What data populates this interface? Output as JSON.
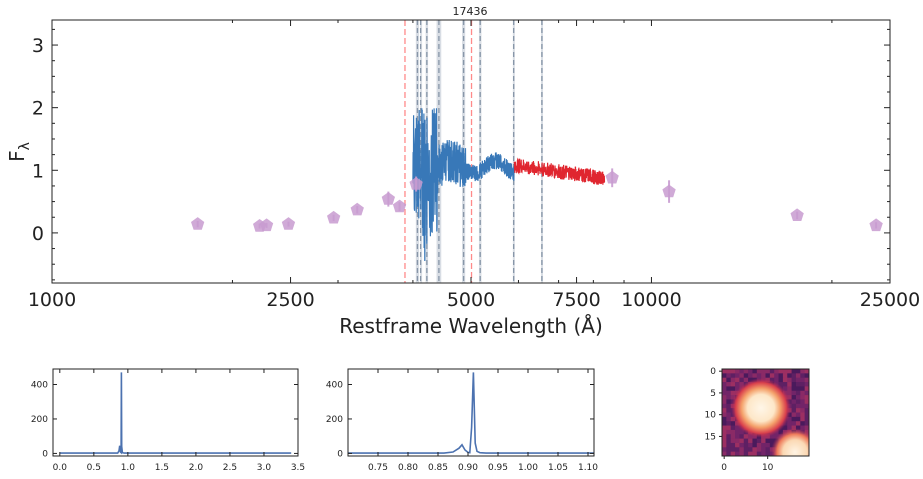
{
  "chart_data": [
    {
      "type": "line",
      "title": "17436",
      "xlabel": "Restframe Wavelength (Å)",
      "ylabel": "F",
      "ylabel_sub": "λ",
      "x_scale": "log",
      "xlim": [
        1000,
        25000
      ],
      "ylim": [
        -0.8,
        3.4
      ],
      "x_ticks": [
        1000,
        2500,
        5000,
        7500,
        10000,
        25000
      ],
      "x_tick_labels": [
        "1000",
        "2500",
        "5000",
        "7500",
        "10000",
        "25000"
      ],
      "y_ticks": [
        0,
        1,
        2,
        3
      ],
      "y_tick_labels": [
        "0",
        "1",
        "2",
        "3"
      ],
      "red_dashed_lines": [
        3880,
        5010
      ],
      "gray_bands": [
        {
          "center": 4070,
          "half_width": 25
        },
        {
          "center": 4120,
          "half_width": 8
        },
        {
          "center": 4220,
          "half_width": 20
        },
        {
          "center": 4420,
          "half_width": 40
        },
        {
          "center": 4860,
          "half_width": 30
        },
        {
          "center": 5180,
          "half_width": 25
        },
        {
          "center": 5890,
          "half_width": 18
        },
        {
          "center": 6565,
          "half_width": 22
        }
      ],
      "photometry_points": [
        {
          "x": 1750,
          "y": 0.14,
          "err": 0.05
        },
        {
          "x": 2220,
          "y": 0.11,
          "err": 0.04
        },
        {
          "x": 2280,
          "y": 0.12,
          "err": 0.04
        },
        {
          "x": 2480,
          "y": 0.14,
          "err": 0.04
        },
        {
          "x": 2950,
          "y": 0.24,
          "err": 0.05
        },
        {
          "x": 3230,
          "y": 0.37,
          "err": 0.06
        },
        {
          "x": 3640,
          "y": 0.54,
          "err": 0.12
        },
        {
          "x": 3800,
          "y": 0.42,
          "err": 0.07
        },
        {
          "x": 4050,
          "y": 0.78,
          "err": 0.12
        },
        {
          "x": 8600,
          "y": 0.88,
          "err": 0.15
        },
        {
          "x": 10700,
          "y": 0.66,
          "err": 0.18
        },
        {
          "x": 17500,
          "y": 0.28,
          "err": 0.06
        },
        {
          "x": 23700,
          "y": 0.12,
          "err": 0.05
        }
      ],
      "series": [
        {
          "color": "#3878b8",
          "x_range": [
            4000,
            5900
          ]
        },
        {
          "color": "#e0262f",
          "x_range": [
            5900,
            8350
          ]
        }
      ],
      "colors": {
        "blue": "#3878b8",
        "red": "#e0262f",
        "photometry": "#c89bd0",
        "band": "#a8b4c4",
        "redline": "#ff8a8a"
      }
    },
    {
      "type": "line",
      "xlim": [
        -0.1,
        3.5
      ],
      "ylim": [
        -15,
        490
      ],
      "x_ticks": [
        0.0,
        0.5,
        1.0,
        1.5,
        2.0,
        2.5,
        3.0,
        3.5
      ],
      "x_tick_labels": [
        "0.0",
        "0.5",
        "1.0",
        "1.5",
        "2.0",
        "2.5",
        "3.0",
        "3.5"
      ],
      "y_ticks": [
        0,
        200,
        400
      ],
      "y_tick_labels": [
        "0",
        "200",
        "400"
      ],
      "x": [
        0.0,
        0.85,
        0.87,
        0.88,
        0.89,
        0.9,
        0.905,
        0.91,
        0.92,
        0.95,
        3.4
      ],
      "values": [
        2,
        2,
        15,
        45,
        8,
        5,
        470,
        40,
        4,
        2,
        2
      ]
    },
    {
      "type": "line",
      "xlim": [
        0.7,
        1.11
      ],
      "ylim": [
        -15,
        490
      ],
      "x_ticks": [
        0.75,
        0.8,
        0.85,
        0.9,
        0.95,
        1.0,
        1.05,
        1.1
      ],
      "x_tick_labels": [
        "0.75",
        "0.80",
        "0.85",
        "0.90",
        "0.95",
        "1.00",
        "1.05",
        "1.10"
      ],
      "y_ticks": [
        0,
        200,
        400
      ],
      "y_tick_labels": [
        "0",
        "200",
        "400"
      ],
      "x": [
        0.7,
        0.86,
        0.875,
        0.885,
        0.89,
        0.895,
        0.9,
        0.903,
        0.906,
        0.909,
        0.912,
        0.915,
        0.92,
        0.93,
        1.11
      ],
      "values": [
        2,
        2,
        8,
        30,
        50,
        20,
        6,
        4,
        150,
        470,
        60,
        12,
        4,
        2,
        2
      ]
    },
    {
      "type": "heatmap",
      "x_ticks": [
        0,
        10
      ],
      "x_tick_labels": [
        "0",
        "10"
      ],
      "y_ticks": [
        0,
        5,
        10,
        15
      ],
      "y_tick_labels": [
        "0",
        "5",
        "10",
        "15"
      ],
      "size": 20
    }
  ]
}
